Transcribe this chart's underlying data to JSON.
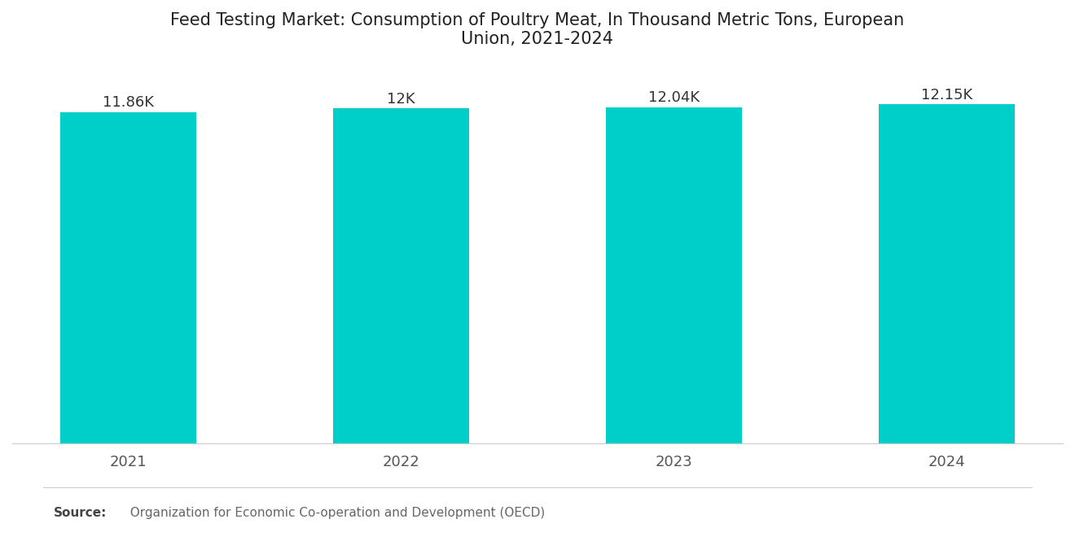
{
  "title": "Feed Testing Market: Consumption of Poultry Meat, In Thousand Metric Tons, European\nUnion, 2021-2024",
  "categories": [
    "2021",
    "2022",
    "2023",
    "2024"
  ],
  "values": [
    11860,
    12000,
    12040,
    12150
  ],
  "bar_labels": [
    "11.86K",
    "12K",
    "12.04K",
    "12.15K"
  ],
  "bar_color": "#00CEC9",
  "background_color": "#ffffff",
  "title_fontsize": 15,
  "label_fontsize": 13,
  "tick_fontsize": 13,
  "ylim_min": 0,
  "ylim_max": 13500,
  "bar_width": 0.5
}
